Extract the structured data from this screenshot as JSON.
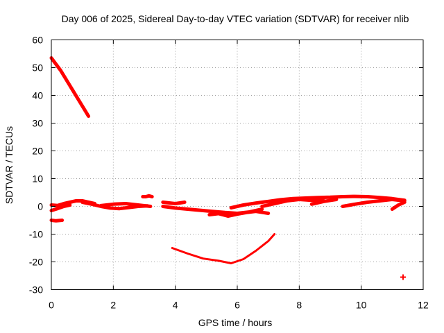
{
  "chart_data": {
    "type": "scatter",
    "title": "Day 006 of 2025, Sidereal Day-to-day VTEC variation (SDTVAR) for receiver nlib",
    "xlabel": "GPS time / hours",
    "ylabel": "SDTVAR / TECUs",
    "xlim": [
      0,
      12
    ],
    "ylim": [
      -30,
      60
    ],
    "x_ticks": [
      0,
      2,
      4,
      6,
      8,
      10,
      12
    ],
    "y_ticks": [
      -30,
      -20,
      -10,
      0,
      10,
      20,
      30,
      40,
      50,
      60
    ],
    "grid": true,
    "marker": "+",
    "color": "#ff0000",
    "series": [
      {
        "name": "arc-1",
        "style": "thick",
        "x": [
          0.0,
          0.3,
          0.6,
          0.9,
          1.2
        ],
        "y": [
          53.5,
          49.0,
          43.5,
          38.0,
          32.5
        ]
      },
      {
        "name": "arc-2",
        "style": "thick",
        "x": [
          0.0,
          0.15,
          0.35
        ],
        "y": [
          -5.0,
          -5.2,
          -5.0
        ]
      },
      {
        "name": "arc-3",
        "style": "thick",
        "x": [
          0.0,
          0.2,
          0.4,
          0.6,
          0.8,
          1.0,
          1.2,
          1.4
        ],
        "y": [
          0.5,
          0.3,
          1.0,
          1.5,
          2.0,
          2.0,
          1.5,
          1.0
        ]
      },
      {
        "name": "arc-4",
        "style": "thick",
        "x": [
          0.0,
          0.2,
          0.4,
          0.6
        ],
        "y": [
          -1.5,
          -0.8,
          0.0,
          0.5
        ]
      },
      {
        "name": "arc-5",
        "style": "thick",
        "x": [
          1.0,
          1.3,
          1.6,
          1.9,
          2.2,
          2.5,
          2.8,
          3.1
        ],
        "y": [
          1.5,
          0.8,
          0.0,
          -0.6,
          -0.8,
          -0.4,
          0.0,
          0.2
        ]
      },
      {
        "name": "arc-6",
        "style": "thick",
        "x": [
          1.6,
          2.0,
          2.4,
          2.8,
          3.2
        ],
        "y": [
          0.3,
          0.8,
          1.0,
          0.5,
          0.0
        ]
      },
      {
        "name": "arc-7",
        "style": "thick",
        "x": [
          2.95,
          3.05,
          3.15,
          3.25
        ],
        "y": [
          3.5,
          3.5,
          3.8,
          3.5
        ]
      },
      {
        "name": "arc-8",
        "style": "thick",
        "x": [
          3.6,
          4.0,
          4.4,
          4.8,
          5.2,
          5.6,
          6.0,
          6.4,
          6.8
        ],
        "y": [
          0.0,
          -0.6,
          -1.0,
          -1.4,
          -1.8,
          -2.2,
          -2.5,
          -2.0,
          -1.0
        ]
      },
      {
        "name": "arc-9",
        "style": "thick",
        "x": [
          3.6,
          4.0,
          4.3
        ],
        "y": [
          1.5,
          1.0,
          1.5
        ]
      },
      {
        "name": "arc-10",
        "style": "thick",
        "x": [
          5.1,
          5.4,
          5.7,
          6.0,
          6.3,
          6.6,
          7.0
        ],
        "y": [
          -3.0,
          -2.6,
          -3.5,
          -2.8,
          -2.2,
          -1.8,
          -2.5
        ]
      },
      {
        "name": "arc-11",
        "style": "thick",
        "x": [
          5.8,
          6.2,
          6.6,
          7.0,
          7.4,
          7.8,
          8.2,
          8.6,
          9.0,
          9.4,
          9.8,
          10.2,
          10.6,
          11.0,
          11.4
        ],
        "y": [
          -0.5,
          0.5,
          1.2,
          1.8,
          2.4,
          2.8,
          3.0,
          3.2,
          3.3,
          3.5,
          3.6,
          3.5,
          3.2,
          2.8,
          2.2
        ]
      },
      {
        "name": "arc-12",
        "style": "thick",
        "x": [
          6.8,
          7.2,
          7.6,
          8.0,
          8.4,
          8.8
        ],
        "y": [
          0.0,
          1.0,
          2.0,
          2.5,
          2.2,
          2.0
        ]
      },
      {
        "name": "arc-13",
        "style": "thick",
        "x": [
          8.4,
          8.8,
          9.2
        ],
        "y": [
          0.8,
          1.8,
          2.5
        ]
      },
      {
        "name": "arc-14",
        "style": "thick",
        "x": [
          9.4,
          9.8,
          10.2,
          10.6,
          11.0,
          11.4
        ],
        "y": [
          0.0,
          0.8,
          1.5,
          2.0,
          2.5,
          2.0
        ]
      },
      {
        "name": "arc-15",
        "style": "thick",
        "x": [
          11.0,
          11.2,
          11.4
        ],
        "y": [
          -1.0,
          0.5,
          1.5
        ]
      },
      {
        "name": "arc-16",
        "style": "thin",
        "x": [
          3.9,
          4.4,
          4.9,
          5.4,
          5.8,
          6.2,
          6.6,
          7.0,
          7.2
        ],
        "y": [
          -15.0,
          -17.0,
          -18.8,
          -19.6,
          -20.5,
          -19.0,
          -16.0,
          -12.5,
          -10.0
        ]
      }
    ],
    "points": [
      {
        "x": 11.35,
        "y": -25.5
      }
    ]
  }
}
